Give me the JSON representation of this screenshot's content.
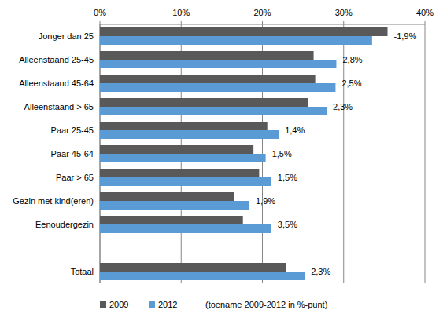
{
  "chart_data": {
    "type": "bar",
    "orientation": "horizontal",
    "categories": [
      "Jonger dan 25",
      "Alleenstaand 25-45",
      "Alleenstaand 45-64",
      "Alleenstaand > 65",
      "Paar 25-45",
      "Paar 45-64",
      "Paar > 65",
      "Gezin met kind(eren)",
      "Eenoudergezin",
      null,
      "Totaal"
    ],
    "series": [
      {
        "name": "2009",
        "color": "#595959",
        "values": [
          35.4,
          26.3,
          26.5,
          25.6,
          20.6,
          18.9,
          19.6,
          16.5,
          17.6,
          null,
          22.9
        ]
      },
      {
        "name": "2012",
        "color": "#5b9bd5",
        "values": [
          33.5,
          29.1,
          29.0,
          27.9,
          22.0,
          20.4,
          21.1,
          18.4,
          21.1,
          null,
          25.2
        ]
      }
    ],
    "xlim": [
      0,
      40
    ],
    "xticks": [
      {
        "value": 0,
        "label": "0%"
      },
      {
        "value": 10,
        "label": "10%"
      },
      {
        "value": 20,
        "label": "20%"
      },
      {
        "value": 30,
        "label": "30%"
      },
      {
        "value": 40,
        "label": "40%"
      }
    ],
    "grid": true,
    "legend": "bottom",
    "annotations": {
      "note": "(toename 2009-2012 in %-punt)",
      "labels": [
        "-1,9%",
        "2,8%",
        "2,5%",
        "2,3%",
        "1,4%",
        "1,5%",
        "1,5%",
        "1,9%",
        "3,5%",
        null,
        "2,3%"
      ]
    }
  }
}
